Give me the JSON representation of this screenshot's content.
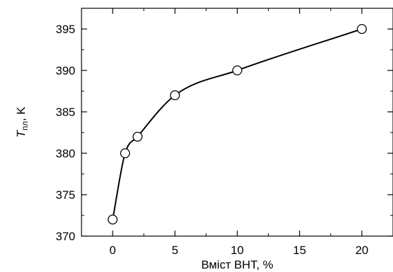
{
  "chart_data": {
    "type": "line",
    "title": "",
    "xlabel": "Вміст BHT, %",
    "ylabel": {
      "main": "T",
      "subscript": "пл",
      "suffix": ", K"
    },
    "x": [
      0,
      1,
      2,
      5,
      10,
      20
    ],
    "series": [
      {
        "values": [
          372,
          380,
          382,
          387,
          390,
          395
        ],
        "marker": "open-circle",
        "line": "smooth",
        "color": "#000000"
      }
    ],
    "xlim": [
      -2.5,
      22.5
    ],
    "ylim": [
      370,
      397.5
    ],
    "xticks": [
      0,
      5,
      10,
      15,
      20
    ],
    "xticks_minor": [
      2.5,
      7.5,
      12.5,
      17.5
    ],
    "yticks": [
      370,
      375,
      380,
      385,
      390,
      395
    ],
    "yticks_minor": [
      372.5,
      377.5,
      382.5,
      387.5,
      392.5
    ],
    "grid": false,
    "legend": "none"
  }
}
